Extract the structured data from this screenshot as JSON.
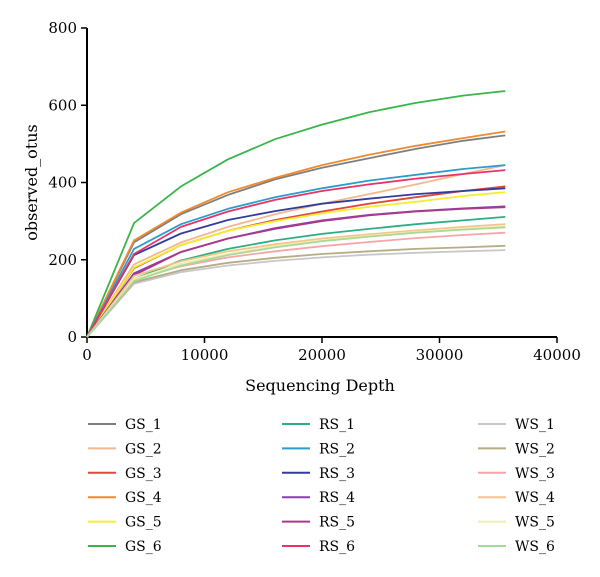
{
  "chart_data": {
    "type": "line",
    "xlabel": "Sequencing Depth",
    "ylabel": "observed_otus",
    "xlim": [
      0,
      40000
    ],
    "ylim": [
      0,
      800
    ],
    "xticks": [
      0,
      10000,
      20000,
      30000,
      40000
    ],
    "yticks": [
      0,
      200,
      400,
      600,
      800
    ],
    "grid": false,
    "legend_position": "bottom",
    "x": [
      0,
      4000,
      8000,
      12000,
      16000,
      20000,
      24000,
      28000,
      32000,
      35600
    ],
    "series": [
      {
        "name": "GS_1",
        "color": "#7f7f7f",
        "values": [
          0,
          245,
          318,
          368,
          408,
          438,
          463,
          487,
          508,
          522
        ]
      },
      {
        "name": "GS_2",
        "color": "#f5b78e",
        "values": [
          0,
          188,
          245,
          285,
          318,
          345,
          370,
          395,
          422,
          445
        ]
      },
      {
        "name": "GS_3",
        "color": "#e3463b",
        "values": [
          0,
          178,
          238,
          275,
          303,
          325,
          345,
          362,
          378,
          390
        ]
      },
      {
        "name": "GS_4",
        "color": "#f08a30",
        "values": [
          0,
          250,
          322,
          375,
          412,
          445,
          472,
          495,
          515,
          532
        ]
      },
      {
        "name": "GS_5",
        "color": "#f2ef2c",
        "values": [
          0,
          180,
          238,
          275,
          300,
          320,
          337,
          350,
          365,
          375
        ]
      },
      {
        "name": "GS_6",
        "color": "#3ab54a",
        "values": [
          0,
          295,
          390,
          460,
          512,
          550,
          582,
          606,
          625,
          637
        ]
      },
      {
        "name": "RS_1",
        "color": "#2cae84",
        "values": [
          0,
          150,
          198,
          228,
          250,
          267,
          280,
          292,
          302,
          311
        ]
      },
      {
        "name": "RS_2",
        "color": "#2a9ec8",
        "values": [
          0,
          228,
          292,
          332,
          362,
          385,
          405,
          420,
          435,
          445
        ]
      },
      {
        "name": "RS_3",
        "color": "#323c9c",
        "values": [
          0,
          212,
          268,
          303,
          326,
          345,
          358,
          370,
          378,
          385
        ]
      },
      {
        "name": "RS_4",
        "color": "#8a3bb5",
        "values": [
          0,
          165,
          220,
          255,
          282,
          302,
          316,
          326,
          333,
          338
        ]
      },
      {
        "name": "RS_5",
        "color": "#a83a8a",
        "values": [
          0,
          160,
          220,
          255,
          280,
          300,
          315,
          325,
          332,
          336
        ]
      },
      {
        "name": "RS_6",
        "color": "#e8336a",
        "values": [
          0,
          215,
          285,
          325,
          355,
          378,
          395,
          410,
          422,
          432
        ]
      },
      {
        "name": "WS_1",
        "color": "#c8c8c8",
        "values": [
          0,
          138,
          168,
          185,
          197,
          206,
          213,
          218,
          222,
          225
        ]
      },
      {
        "name": "WS_2",
        "color": "#b5ad85",
        "values": [
          0,
          142,
          173,
          192,
          205,
          215,
          222,
          228,
          232,
          236
        ]
      },
      {
        "name": "WS_3",
        "color": "#f5a6a6",
        "values": [
          0,
          150,
          183,
          206,
          222,
          235,
          246,
          256,
          264,
          270
        ]
      },
      {
        "name": "WS_4",
        "color": "#f7c488",
        "values": [
          0,
          158,
          196,
          222,
          240,
          255,
          266,
          276,
          285,
          292
        ]
      },
      {
        "name": "WS_5",
        "color": "#efefb0",
        "values": [
          0,
          150,
          190,
          215,
          235,
          250,
          262,
          272,
          280,
          286
        ]
      },
      {
        "name": "WS_6",
        "color": "#a9d99a",
        "values": [
          0,
          145,
          185,
          212,
          232,
          248,
          260,
          270,
          278,
          284
        ]
      }
    ]
  }
}
